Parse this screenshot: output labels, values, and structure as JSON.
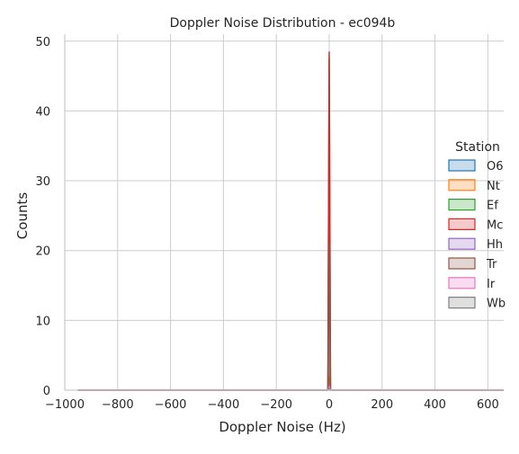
{
  "chart_data": {
    "type": "area",
    "title": "Doppler Noise Distribution - ec094b",
    "xlabel": "Doppler Noise (Hz)",
    "ylabel": "Counts",
    "xlim": [
      -1000,
      660
    ],
    "ylim": [
      0,
      51
    ],
    "x_ticks": [
      -1000,
      -800,
      -600,
      -400,
      -200,
      0,
      200,
      400,
      600
    ],
    "x_tick_labels": [
      "−1000",
      "−800",
      "−600",
      "−400",
      "−200",
      "0",
      "200",
      "400",
      "600"
    ],
    "y_ticks": [
      0,
      10,
      20,
      30,
      40,
      50
    ],
    "y_tick_labels": [
      "0",
      "10",
      "20",
      "30",
      "40",
      "50"
    ],
    "grid": true,
    "legend": {
      "title": "Station",
      "placement": "right"
    },
    "series": [
      {
        "name": "O6",
        "color": "#1f77b4",
        "x": [
          -950,
          -5,
          0,
          5,
          660
        ],
        "y": [
          0,
          0,
          0.3,
          0,
          0
        ]
      },
      {
        "name": "Nt",
        "color": "#ff7f0e",
        "x": [
          -950,
          -5,
          0,
          5,
          660
        ],
        "y": [
          0,
          0,
          2,
          0,
          0
        ]
      },
      {
        "name": "Ef",
        "color": "#2ca02c",
        "x": [
          -950,
          -5,
          0,
          5,
          660
        ],
        "y": [
          0,
          0,
          47.5,
          0,
          0
        ]
      },
      {
        "name": "Mc",
        "color": "#d62728",
        "x": [
          -950,
          -5,
          0,
          5,
          660
        ],
        "y": [
          0,
          0,
          48.5,
          0,
          0
        ]
      },
      {
        "name": "Hh",
        "color": "#9467bd",
        "x": [
          -950,
          -5,
          0,
          5,
          660
        ],
        "y": [
          0,
          0,
          0.5,
          0,
          0
        ]
      },
      {
        "name": "Tr",
        "color": "#8c564b",
        "x": [
          -950,
          -5,
          0,
          5,
          660
        ],
        "y": [
          0,
          0,
          21,
          0,
          0
        ]
      },
      {
        "name": "Ir",
        "color": "#e377c2",
        "x": [
          -950,
          -5,
          0,
          5,
          660
        ],
        "y": [
          0,
          0,
          0.5,
          0,
          0
        ]
      },
      {
        "name": "Wb",
        "color": "#7f7f7f",
        "x": [
          -950,
          -5,
          0,
          5,
          660
        ],
        "y": [
          0,
          0,
          0.2,
          0,
          0
        ]
      }
    ]
  }
}
